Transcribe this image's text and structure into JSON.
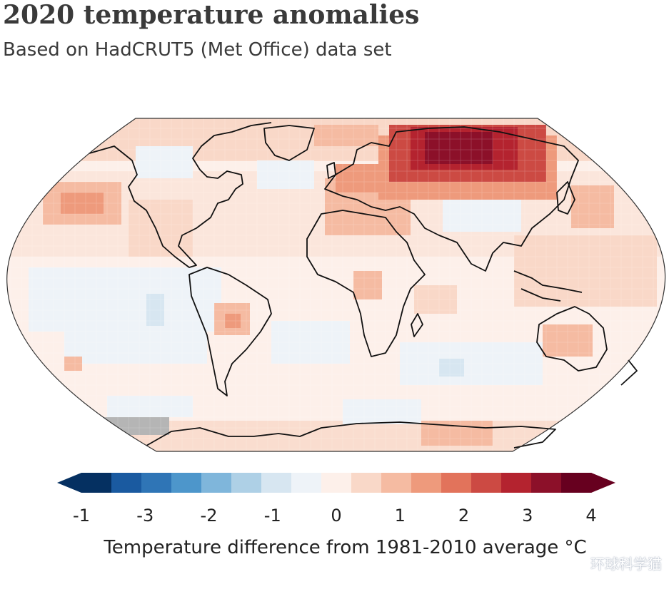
{
  "header": {
    "title": "2020 temperature anomalies",
    "subtitle": "Based on HadCRUT5 (Met Office) data set"
  },
  "map": {
    "projection": "Robinson-like world map",
    "no_data_color": "#b5b5b5",
    "coastline_color": "#111111",
    "hotspots": [
      {
        "region": "northern-siberia",
        "anomaly_c": 4
      },
      {
        "region": "western-russia",
        "anomaly_c": 2.5
      },
      {
        "region": "north-pacific",
        "anomaly_c": 1.5
      },
      {
        "region": "central-south-america",
        "anomaly_c": 1.5
      },
      {
        "region": "east-pacific",
        "anomaly_c": -0.5
      },
      {
        "region": "southern-indian-ocean",
        "anomaly_c": -0.5
      },
      {
        "region": "antarctic-pacific-sector",
        "anomaly_c": null
      }
    ]
  },
  "legend": {
    "title": "Temperature difference from 1981-2010 average °C",
    "tick_labels": [
      "-1",
      "-3",
      "-2",
      "-1",
      "0",
      "1",
      "2",
      "3",
      "4"
    ],
    "colors": [
      "#053061",
      "#1a5aa0",
      "#2f75b6",
      "#4d96cb",
      "#7fb6db",
      "#aed0e6",
      "#d7e6f1",
      "#eef3f8",
      "#fdf0ea",
      "#f9d8c8",
      "#f5bba2",
      "#ee9a7c",
      "#e2735b",
      "#cc4a43",
      "#b4232f",
      "#8c1029",
      "#67001f"
    ],
    "arrow_left_color": "#053061",
    "arrow_right_color": "#67001f"
  },
  "watermark": "环球科学猫"
}
